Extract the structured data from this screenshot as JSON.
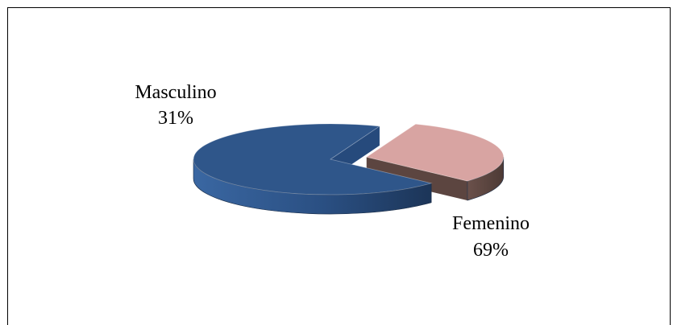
{
  "chart_data": {
    "type": "pie",
    "title": "",
    "categories": [
      "Masculino",
      "Femenino"
    ],
    "values": [
      31,
      69
    ],
    "value_labels": [
      "31%",
      "69%"
    ],
    "colors": {
      "Masculino": {
        "top": "#d8a4a2",
        "side": "#5c4540"
      },
      "Femenino": {
        "top": "#2f568a",
        "side": "#264a7c"
      }
    },
    "exploded": true,
    "legend": "none",
    "grid": false
  }
}
